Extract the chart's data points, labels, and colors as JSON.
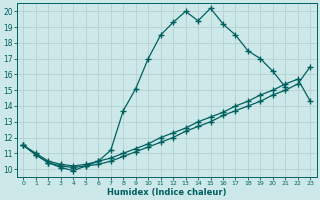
{
  "xlabel": "Humidex (Indice chaleur)",
  "background_color": "#cde8e8",
  "grid_color": "#b0cccc",
  "line_color": "#006060",
  "xlim": [
    -0.5,
    23.5
  ],
  "ylim": [
    9.5,
    20.5
  ],
  "xticks": [
    0,
    1,
    2,
    3,
    4,
    5,
    6,
    7,
    8,
    9,
    10,
    11,
    12,
    13,
    14,
    15,
    16,
    17,
    18,
    19,
    20,
    21,
    22,
    23
  ],
  "yticks": [
    10,
    11,
    12,
    13,
    14,
    15,
    16,
    17,
    18,
    19,
    20
  ],
  "line1_x": [
    0,
    1,
    2,
    3,
    4,
    5,
    6,
    7,
    8,
    9,
    10,
    11,
    12,
    13,
    14,
    15,
    16,
    17,
    18,
    19,
    20,
    21
  ],
  "line1_y": [
    11.5,
    10.9,
    10.4,
    10.1,
    9.9,
    10.2,
    10.5,
    11.2,
    13.7,
    15.1,
    17.0,
    18.5,
    19.3,
    20.0,
    19.4,
    20.2,
    19.2,
    18.5,
    17.5,
    17.0,
    16.2,
    15.2
  ],
  "line2_x": [
    0,
    1,
    2,
    3,
    4,
    5,
    6,
    7,
    8,
    9,
    10,
    11,
    12,
    13,
    14,
    15,
    16,
    17,
    18,
    19,
    20,
    21,
    22,
    23
  ],
  "line2_y": [
    11.5,
    10.9,
    10.4,
    10.2,
    10.1,
    10.2,
    10.3,
    10.5,
    10.8,
    11.1,
    11.4,
    11.7,
    12.0,
    12.4,
    12.7,
    13.0,
    13.4,
    13.7,
    14.0,
    14.3,
    14.7,
    15.0,
    15.4,
    16.5
  ],
  "line3_x": [
    0,
    1,
    2,
    3,
    4,
    5,
    6,
    7,
    8,
    9,
    10,
    11,
    12,
    13,
    14,
    15,
    16,
    17,
    18,
    19,
    20,
    21,
    22,
    23
  ],
  "line3_y": [
    11.5,
    11.0,
    10.5,
    10.3,
    10.2,
    10.3,
    10.5,
    10.7,
    11.0,
    11.3,
    11.6,
    12.0,
    12.3,
    12.6,
    13.0,
    13.3,
    13.6,
    14.0,
    14.3,
    14.7,
    15.0,
    15.4,
    15.7,
    14.3
  ]
}
